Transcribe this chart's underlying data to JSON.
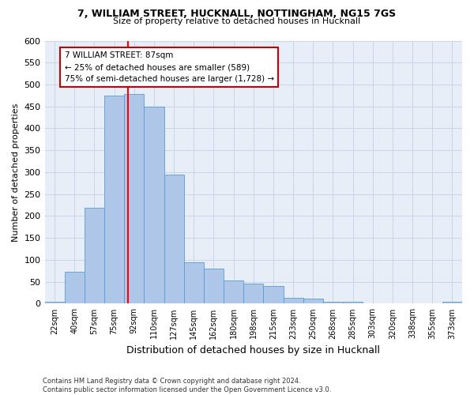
{
  "title_line1": "7, WILLIAM STREET, HUCKNALL, NOTTINGHAM, NG15 7GS",
  "title_line2": "Size of property relative to detached houses in Hucknall",
  "xlabel": "Distribution of detached houses by size in Hucknall",
  "ylabel": "Number of detached properties",
  "categories": [
    "22sqm",
    "40sqm",
    "57sqm",
    "75sqm",
    "92sqm",
    "110sqm",
    "127sqm",
    "145sqm",
    "162sqm",
    "180sqm",
    "198sqm",
    "215sqm",
    "233sqm",
    "250sqm",
    "268sqm",
    "285sqm",
    "303sqm",
    "320sqm",
    "338sqm",
    "355sqm",
    "373sqm"
  ],
  "values": [
    5,
    72,
    219,
    475,
    478,
    450,
    295,
    95,
    80,
    53,
    46,
    40,
    13,
    11,
    5,
    5,
    0,
    0,
    0,
    0,
    5
  ],
  "bar_color": "#aec6e8",
  "bar_edge_color": "#5b9bd5",
  "annotation_line1": "7 WILLIAM STREET: 87sqm",
  "annotation_line2": "← 25% of detached houses are smaller (589)",
  "annotation_line3": "75% of semi-detached houses are larger (1,728) →",
  "annotation_box_facecolor": "#ffffff",
  "annotation_box_edgecolor": "#cc0000",
  "red_line_x": 3.706,
  "ylim": [
    0,
    600
  ],
  "yticks": [
    0,
    50,
    100,
    150,
    200,
    250,
    300,
    350,
    400,
    450,
    500,
    550,
    600
  ],
  "grid_color": "#c8d4e8",
  "background_color": "#e8eef8",
  "footer_line1": "Contains HM Land Registry data © Crown copyright and database right 2024.",
  "footer_line2": "Contains public sector information licensed under the Open Government Licence v3.0."
}
